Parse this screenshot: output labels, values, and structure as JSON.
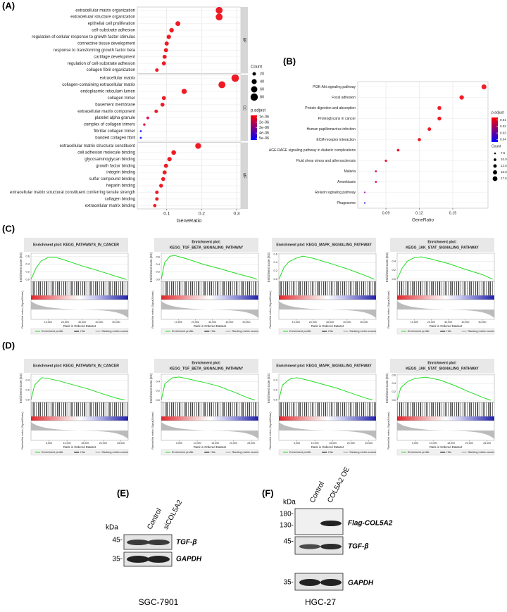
{
  "labels": [
    "(A)",
    "(B)",
    "(C)",
    "(D)",
    "(E)",
    "(F)"
  ],
  "chart_data": [
    {
      "type": "dotplot",
      "xlabel": "GeneRatio",
      "xlim": [
        0.016,
        0.312
      ],
      "xticks": [
        0.1,
        0.2,
        0.3
      ],
      "grid": true,
      "facets": [
        {
          "name": "BP",
          "categories": [
            "extracellular matrix organization",
            "extracellular structure organization",
            "epithelial cell proliferation",
            "cell-substrate adhesion",
            "regulation of cellular response to growth factor stimulus",
            "connective tissue development",
            "response to transforming growth factor beta",
            "cartilage development",
            "regulation of cell-substrate adhesion",
            "collagen fibril organization"
          ],
          "values": [
            0.25,
            0.25,
            0.132,
            0.114,
            0.106,
            0.1,
            0.098,
            0.094,
            0.092,
            0.072
          ],
          "sizes": [
            70,
            70,
            37,
            32,
            30,
            28,
            27,
            26,
            26,
            20
          ],
          "colors": [
            "#ee1b24",
            "#ee1b24",
            "#ee1b24",
            "#ee1b24",
            "#ee1b24",
            "#ee1b24",
            "#ee1b24",
            "#ee1b24",
            "#ee1b24",
            "#ee1b24"
          ]
        },
        {
          "name": "CC",
          "categories": [
            "extracellular matrix",
            "collagen-containing extracellular matrix",
            "endoplasmic reticulum lumen",
            "collagen trimer",
            "basement membrane",
            "extracellular matrix component",
            "platelet alpha granule",
            "complex of collagen trimers",
            "fibrillar collagen trimer",
            "banded collagen fibril"
          ],
          "values": [
            0.296,
            0.258,
            0.15,
            0.092,
            0.088,
            0.07,
            0.046,
            0.036,
            0.026,
            0.026
          ],
          "sizes": [
            83,
            72,
            42,
            26,
            25,
            20,
            13,
            10,
            7,
            7
          ],
          "colors": [
            "#ee1b24",
            "#ee1b24",
            "#ee1b24",
            "#ee1b24",
            "#ee1b24",
            "#ee1b24",
            "#d8186a",
            "#e8183c",
            "#2a2af5",
            "#2a2af5"
          ]
        },
        {
          "name": "MF",
          "categories": [
            "extracellular matrix structural constituent",
            "cell adhesion molecule binding",
            "glycosaminoglycan binding",
            "growth factor binding",
            "integrin binding",
            "sulfur compound binding",
            "heparin binding",
            "extracellular matrix structural constituent conferring tensile strength",
            "collagen binding",
            "extracellular matrix binding"
          ],
          "values": [
            0.19,
            0.12,
            0.108,
            0.098,
            0.094,
            0.09,
            0.084,
            0.072,
            0.072,
            0.066
          ],
          "sizes": [
            53,
            34,
            30,
            27,
            26,
            25,
            24,
            20,
            20,
            18
          ],
          "colors": [
            "#ee1b24",
            "#ee1b24",
            "#ee1b24",
            "#ee1b24",
            "#ee1b24",
            "#ee1b24",
            "#ee1b24",
            "#ee1b24",
            "#ee1b24",
            "#ee1b24"
          ]
        }
      ],
      "size_legend": {
        "title": "Count",
        "values": [
          20,
          40,
          60,
          80
        ]
      },
      "color_legend": {
        "title": "p.adjust",
        "colors": [
          "#ff0000",
          "#0000ff"
        ],
        "lim": [
          7e-07,
          5.3e-06
        ],
        "ticks": [
          {
            "value": 1e-06,
            "label": "1e-06"
          },
          {
            "value": 2e-06,
            "label": "2e-06"
          },
          {
            "value": 3e-06,
            "label": "3e-06"
          },
          {
            "value": 4e-06,
            "label": "4e-06"
          },
          {
            "value": 5e-06,
            "label": "5e-06"
          }
        ]
      }
    },
    {
      "type": "dotplot",
      "xlabel": "GeneRatio",
      "xlim": [
        0.0647,
        0.1816
      ],
      "xticks": [
        0.09,
        0.12,
        0.15
      ],
      "grid": true,
      "facets": [
        {
          "categories": [
            "PI3K-Akt signaling pathway",
            "Focal adhesion",
            "Protein digestion and absorption",
            "Proteoglycans in cancer",
            "Human papillomavirus infection",
            "ECM-receptor interaction",
            "AGE-RAGE signaling pathway in diabetic complications",
            "Fluid shear stress and atherosclerosis",
            "Malaria",
            "Amoebiasis",
            "Relaxin signaling pathway",
            "Phagosome"
          ],
          "values": [
            0.178,
            0.158,
            0.138,
            0.138,
            0.129,
            0.12,
            0.101,
            0.09,
            0.081,
            0.081,
            0.071,
            0.071
          ],
          "sizes": [
            18,
            16,
            14,
            14,
            13,
            12,
            10,
            9,
            8,
            8,
            7,
            7
          ],
          "colors": [
            "#f01e28",
            "#f01e28",
            "#f01e28",
            "#f01e28",
            "#f01e28",
            "#f01e28",
            "#e81c34",
            "#e41c3c",
            "#dc1a4c",
            "#dc1a4c",
            "#b020c0",
            "#3232f0"
          ]
        }
      ],
      "size_legend": {
        "title": "Count",
        "values": [
          7.5,
          {
            "value": 10,
            "label": "10.0"
          },
          12.5,
          {
            "value": 15,
            "label": "15.0"
          },
          17.5
        ]
      },
      "color_legend": {
        "title": "p.adjust",
        "colors": [
          "#ff0000",
          "#0000ff"
        ],
        "lim": [
          0.006,
          0.044
        ],
        "ticks": [
          0.01,
          0.02,
          0.03,
          0.04
        ]
      }
    }
  ],
  "gsea": {
    "es_label": "Enrichment score (ES)",
    "metric_label": "Ranked list metric (Signal2Noise)",
    "xlabel": "Rank in Ordered Dataset",
    "legend": [
      "Enrichment profile",
      "Hits",
      "Ranking metric scores"
    ],
    "color": "#22dd22",
    "plots": [
      {
        "title": [
          "Enrichment plot: KEGG_PATHWAYS_IN_CANCER"
        ],
        "x": [
          0,
          3000,
          6000,
          10000,
          14000,
          20000,
          30000,
          40000,
          50000,
          56000
        ],
        "values": [
          0,
          0.3,
          0.48,
          0.57,
          0.58,
          0.5,
          0.35,
          0.22,
          0.08,
          0
        ],
        "xlim": [
          0,
          57000
        ],
        "xticks": [
          {
            "value": 10000,
            "label": "10,000"
          },
          {
            "value": 20000,
            "label": "20,000"
          },
          {
            "value": 30000,
            "label": "30,000"
          },
          {
            "value": 40000,
            "label": "40,000"
          },
          {
            "value": 50000,
            "label": "50,000"
          }
        ],
        "ylim": [
          -0.05,
          0.68
        ],
        "yticks": [
          {
            "value": 0,
            "label": "0.0"
          },
          0.2,
          0.4,
          0.6
        ]
      },
      {
        "title": [
          "Enrichment plot:",
          "KEGG_TGF_BETA_SIGNALING_PATHWAY"
        ],
        "x": [
          0,
          2000,
          5000,
          8000,
          15000,
          25000,
          35000,
          45000,
          55000,
          56000
        ],
        "values": [
          0,
          0.45,
          0.62,
          0.64,
          0.55,
          0.4,
          0.28,
          0.15,
          0.03,
          0
        ],
        "xlim": [
          0,
          57000
        ],
        "xticks": [
          {
            "value": 10000,
            "label": "10,000"
          },
          {
            "value": 20000,
            "label": "20,000"
          },
          {
            "value": 30000,
            "label": "30,000"
          },
          {
            "value": 40000,
            "label": "40,000"
          },
          {
            "value": 50000,
            "label": "50,000"
          }
        ],
        "ylim": [
          -0.05,
          0.7
        ],
        "yticks": [
          {
            "value": 0,
            "label": "0.0"
          },
          0.2,
          0.4,
          0.6
        ]
      },
      {
        "title": [
          "Enrichment plot: KEGG_MAPK_SIGNALING_PATHWAY"
        ],
        "x": [
          0,
          3000,
          6000,
          10000,
          14000,
          20000,
          30000,
          40000,
          50000,
          56000
        ],
        "values": [
          0,
          0.28,
          0.42,
          0.5,
          0.55,
          0.5,
          0.38,
          0.25,
          0.1,
          0
        ],
        "xlim": [
          0,
          57000
        ],
        "xticks": [
          {
            "value": 10000,
            "label": "10,000"
          },
          {
            "value": 20000,
            "label": "20,000"
          },
          {
            "value": 30000,
            "label": "30,000"
          },
          {
            "value": 40000,
            "label": "40,000"
          },
          {
            "value": 50000,
            "label": "50,000"
          }
        ],
        "ylim": [
          -0.05,
          0.62
        ],
        "yticks": [
          {
            "value": 0,
            "label": "0.0"
          },
          0.2,
          0.4,
          0.6
        ]
      },
      {
        "title": [
          "Enrichment plot:",
          "KEGG_JAK_STAT_SIGNALING_PATHWAY"
        ],
        "x": [
          0,
          3000,
          6000,
          10000,
          14000,
          20000,
          30000,
          40000,
          50000,
          56000
        ],
        "values": [
          0,
          0.25,
          0.4,
          0.48,
          0.5,
          0.45,
          0.35,
          0.22,
          0.1,
          0
        ],
        "xlim": [
          0,
          57000
        ],
        "xticks": [
          {
            "value": 10000,
            "label": "10,000"
          },
          {
            "value": 20000,
            "label": "20,000"
          },
          {
            "value": 30000,
            "label": "30,000"
          },
          {
            "value": 40000,
            "label": "40,000"
          },
          {
            "value": 50000,
            "label": "50,000"
          }
        ],
        "ylim": [
          -0.05,
          0.58
        ],
        "yticks": [
          {
            "value": 0,
            "label": "0.0"
          },
          0.2,
          0.4
        ]
      },
      {
        "title": [
          "Enrichment plot: KEGG_PATHWAYS_IN_CANCER"
        ],
        "x": [
          0,
          1000,
          3000,
          5000,
          8000,
          12000,
          16000,
          20000,
          24000,
          26000
        ],
        "values": [
          0,
          0.3,
          0.45,
          0.43,
          0.38,
          0.3,
          0.22,
          0.12,
          0.03,
          0
        ],
        "xlim": [
          0,
          27000
        ],
        "xticks": [
          {
            "value": 5000,
            "label": "5,000"
          },
          {
            "value": 10000,
            "label": "10,000"
          },
          {
            "value": 15000,
            "label": "15,000"
          },
          {
            "value": 20000,
            "label": "20,000"
          },
          {
            "value": 25000,
            "label": "25,000"
          }
        ],
        "ylim": [
          -0.05,
          0.52
        ],
        "yticks": [
          {
            "value": 0,
            "label": "0.0"
          },
          0.2,
          0.4
        ]
      },
      {
        "title": [
          "Enrichment plot:",
          "KEGG_TGF_BETA_SIGNALING_PATHWAY"
        ],
        "x": [
          0,
          1000,
          3000,
          5000,
          8000,
          12000,
          16000,
          20000,
          24000,
          26000
        ],
        "values": [
          0,
          0.35,
          0.48,
          0.5,
          0.45,
          0.38,
          0.3,
          0.18,
          0.05,
          0
        ],
        "xlim": [
          0,
          27000
        ],
        "xticks": [
          {
            "value": 5000,
            "label": "5,000"
          },
          {
            "value": 10000,
            "label": "10,000"
          },
          {
            "value": 15000,
            "label": "15,000"
          },
          {
            "value": 20000,
            "label": "20,000"
          },
          {
            "value": 25000,
            "label": "25,000"
          }
        ],
        "ylim": [
          -0.05,
          0.56
        ],
        "yticks": [
          {
            "value": 0,
            "label": "0.0"
          },
          0.2,
          0.4
        ]
      },
      {
        "title": [
          "Enrichment plot: KEGG_MAPK_SIGNALING_PATHWAY"
        ],
        "x": [
          0,
          1000,
          3000,
          5000,
          8000,
          12000,
          16000,
          20000,
          24000,
          26000
        ],
        "values": [
          0,
          0.3,
          0.42,
          0.45,
          0.4,
          0.32,
          0.24,
          0.14,
          0.04,
          0
        ],
        "xlim": [
          0,
          27000
        ],
        "xticks": [
          {
            "value": 5000,
            "label": "5,000"
          },
          {
            "value": 10000,
            "label": "10,000"
          },
          {
            "value": 15000,
            "label": "15,000"
          },
          {
            "value": 20000,
            "label": "20,000"
          },
          {
            "value": 25000,
            "label": "25,000"
          }
        ],
        "ylim": [
          -0.05,
          0.52
        ],
        "yticks": [
          {
            "value": 0,
            "label": "0.0"
          },
          0.2,
          0.4
        ]
      },
      {
        "title": [
          "Enrichment plot:",
          "KEGG_JAK_STAT_SIGNALING_PATHWAY"
        ],
        "x": [
          0,
          1000,
          3000,
          5000,
          8000,
          12000,
          16000,
          20000,
          24000,
          26000
        ],
        "values": [
          0,
          0.3,
          0.45,
          0.52,
          0.55,
          0.48,
          0.35,
          0.2,
          0.06,
          0
        ],
        "xlim": [
          0,
          27000
        ],
        "xticks": [
          {
            "value": 5000,
            "label": "5,000"
          },
          {
            "value": 10000,
            "label": "10,000"
          },
          {
            "value": 15000,
            "label": "15,000"
          },
          {
            "value": 20000,
            "label": "20,000"
          },
          {
            "value": 25000,
            "label": "25,000"
          }
        ],
        "ylim": [
          -0.05,
          0.62
        ],
        "yticks": [
          {
            "value": 0,
            "label": "0.0"
          },
          0.2,
          0.4,
          0.6
        ]
      }
    ]
  },
  "western": {
    "E": {
      "unit": "kDa",
      "lanes": [
        "Control",
        "siCOL5A2"
      ],
      "markers": [
        "45-",
        "35-"
      ],
      "bands": [
        "TGF-β",
        "GAPDH"
      ],
      "cell_line": "SGC-7901"
    },
    "F": {
      "unit": "kDa",
      "lanes": [
        "Control",
        "COL5A2 OE"
      ],
      "markers": [
        "180-",
        "130-",
        "45-",
        "35-"
      ],
      "bands": [
        "Flag-COL5A2",
        "TGF-β",
        "GAPDH"
      ],
      "cell_line": "HGC-27"
    }
  }
}
